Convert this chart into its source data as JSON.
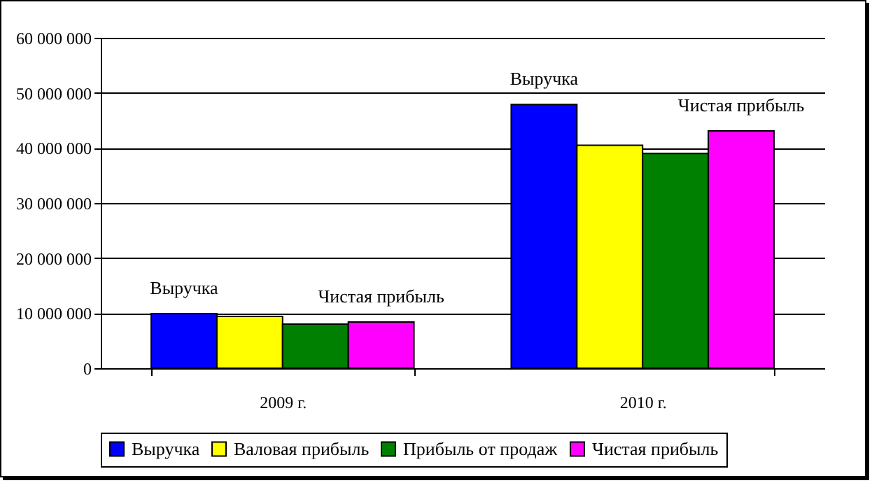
{
  "chart_data": {
    "type": "bar",
    "categories": [
      "2009 г.",
      "2010 г."
    ],
    "series": [
      {
        "name": "Выручка",
        "color": "#0000ff",
        "values": [
          9900000,
          47900000
        ]
      },
      {
        "name": "Валовая прибыль",
        "color": "#ffff00",
        "values": [
          9400000,
          40500000
        ]
      },
      {
        "name": "Прибыль от продаж",
        "color": "#008000",
        "values": [
          8000000,
          39000000
        ]
      },
      {
        "name": "Чистая прибыль",
        "color": "#ff00ff",
        "values": [
          8400000,
          43100000
        ]
      }
    ],
    "ylim": [
      0,
      60000000
    ],
    "yticks": [
      {
        "value": 0,
        "label": "0"
      },
      {
        "value": 10000000,
        "label": "10 000 000"
      },
      {
        "value": 20000000,
        "label": "20 000 000"
      },
      {
        "value": 30000000,
        "label": "30 000 000"
      },
      {
        "value": 40000000,
        "label": "40 000 000"
      },
      {
        "value": 50000000,
        "label": "50 000 000"
      },
      {
        "value": 60000000,
        "label": "60 000 000"
      }
    ],
    "grid": "y",
    "legend": "bottom",
    "annotations": [
      "Выручка",
      "Чистая прибыль",
      "Выручка",
      "Чистая прибыль"
    ]
  }
}
